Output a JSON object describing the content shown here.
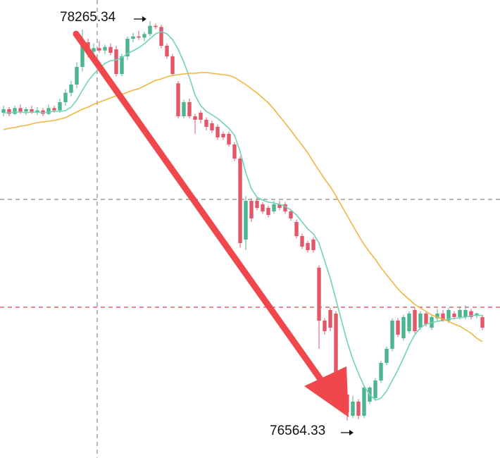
{
  "chart_data": {
    "type": "candlestick",
    "ylim": [
      76405,
      78355
    ],
    "up_color": "#4db58f",
    "down_color": "#e0596a",
    "open": [
      77875,
      77890,
      77870,
      77895,
      77880,
      77890,
      77875,
      77885,
      77870,
      77895,
      77885,
      77920,
      77960,
      77995,
      78070,
      78175,
      78135,
      78150,
      78140,
      78155,
      78145,
      78040,
      78115,
      78190,
      78200,
      78195,
      78210,
      78245,
      78240,
      78160,
      78115,
      78000,
      77860,
      77920,
      77860,
      77875,
      77845,
      77830,
      77815,
      77785,
      77785,
      77740,
      77680,
      77335,
      77500,
      77500,
      77485,
      77470,
      77455,
      77485,
      77485,
      77455,
      77410,
      77350,
      77320,
      77335,
      77215,
      76990,
      77035,
      77020,
      76750,
      76675,
      76585,
      76645,
      76585,
      76645,
      76660,
      76735,
      76810,
      76870,
      76990,
      76915,
      76945,
      77035,
      76960,
      77020,
      76960,
      77000,
      77020,
      76990,
      77020,
      77005,
      77005,
      77030,
      77010,
      77005
    ],
    "high": [
      77905,
      77900,
      77905,
      77910,
      77900,
      77905,
      77900,
      77895,
      77910,
      77905,
      77935,
      77975,
      78010,
      78090,
      78229,
      78190,
      78170,
      78180,
      78165,
      78170,
      78160,
      78125,
      78200,
      78215,
      78225,
      78220,
      78265.34,
      78255,
      78250,
      78170,
      78125,
      78010,
      77930,
      77935,
      77870,
      77885,
      77855,
      77840,
      77825,
      77795,
      77795,
      77750,
      77690,
      77520,
      77510,
      77515,
      77495,
      77480,
      77500,
      77500,
      77495,
      77465,
      77420,
      77360,
      77330,
      77345,
      77225,
      77000,
      77045,
      77030,
      76760,
      76685,
      76670,
      76655,
      76710,
      76710,
      76745,
      76820,
      76880,
      77000,
      77000,
      77015,
      77030,
      77045,
      77030,
      77030,
      77015,
      77040,
      77035,
      77045,
      77030,
      77050,
      77055,
      77040,
      77025,
      77015
    ],
    "low": [
      77860,
      77860,
      77865,
      77870,
      77865,
      77870,
      77865,
      77860,
      77865,
      77875,
      77875,
      77905,
      77945,
      77980,
      78050,
      78110,
      78120,
      78130,
      78125,
      78120,
      78030,
      78030,
      78100,
      78175,
      78185,
      78180,
      78200,
      78230,
      78150,
      78105,
      78030,
      77850,
      77850,
      77850,
      77785,
      77830,
      77800,
      77790,
      77760,
      77760,
      77730,
      77670,
      77300,
      77290,
      77410,
      77460,
      77445,
      77430,
      77445,
      77460,
      77445,
      77415,
      77340,
      77295,
      77280,
      77280,
      76870,
      76930,
      76945,
      76660,
      76660,
      76564.33,
      76575,
      76570,
      76575,
      76635,
      76650,
      76725,
      76800,
      76860,
      76920,
      76905,
      76935,
      76935,
      76950,
      76965,
      76950,
      76990,
      76985,
      76980,
      76995,
      76995,
      76995,
      76995,
      77000,
      76950
    ],
    "close": [
      77890,
      77870,
      77895,
      77880,
      77890,
      77875,
      77885,
      77870,
      77895,
      77885,
      77920,
      77960,
      77995,
      78070,
      78175,
      78135,
      78150,
      78140,
      78155,
      78130,
      78040,
      78115,
      78190,
      78200,
      78195,
      78210,
      78245,
      78240,
      78160,
      78115,
      78040,
      77860,
      77920,
      77860,
      77845,
      77845,
      77815,
      77800,
      77770,
      77770,
      77740,
      77680,
      77320,
      77500,
      77425,
      77470,
      77455,
      77440,
      77485,
      77470,
      77455,
      77425,
      77350,
      77305,
      77290,
      77290,
      76990,
      76945,
      76960,
      76735,
      76675,
      76600,
      76645,
      76585,
      76705,
      76705,
      76735,
      76810,
      76870,
      76990,
      76930,
      77005,
      77020,
      76945,
      77020,
      76975,
      77005,
      77020,
      76990,
      77035,
      77005,
      77035,
      77035,
      77005,
      77020,
      76960
    ],
    "lines": [
      {
        "color": "#6fd3b8",
        "values": [
          77875,
          77875,
          77878,
          77878,
          77875,
          77878,
          77878,
          77875,
          77878,
          77881,
          77881,
          77884,
          77899,
          77929,
          77971,
          78010,
          78040,
          78064,
          78085,
          78097,
          78100,
          78109,
          78127,
          78139,
          78151,
          78169,
          78190,
          78211,
          78220,
          78211,
          78187,
          78145,
          78091,
          78025,
          77950,
          77905,
          77881,
          77866,
          77851,
          77830,
          77809,
          77779,
          77710,
          77620,
          77551,
          77515,
          77503,
          77494,
          77491,
          77485,
          77476,
          77461,
          77440,
          77410,
          77380,
          77359,
          77320,
          77245,
          77170,
          77080,
          76990,
          76900,
          76825,
          76765,
          76711,
          76675,
          76651,
          76660,
          76690,
          76735,
          76780,
          76831,
          76885,
          76930,
          76960,
          76975,
          76981,
          76987,
          76990,
          76996,
          76999,
          77002,
          77005,
          77011,
          77014,
          77011
        ]
      },
      {
        "color": "#f0b63e",
        "values": [
          77803,
          77809,
          77812,
          77818,
          77821,
          77827,
          77833,
          77836,
          77839,
          77842,
          77848,
          77854,
          77866,
          77878,
          77890,
          77899,
          77911,
          77920,
          77929,
          77938,
          77947,
          77953,
          77962,
          77971,
          77977,
          77989,
          78001,
          78013,
          78019,
          78028,
          78034,
          78037,
          78040,
          78043,
          78043,
          78046,
          78046,
          78043,
          78040,
          78037,
          78034,
          78025,
          78010,
          77995,
          77977,
          77959,
          77938,
          77917,
          77890,
          77860,
          77830,
          77800,
          77767,
          77737,
          77704,
          77665,
          77629,
          77593,
          77560,
          77521,
          77479,
          77437,
          77395,
          77353,
          77314,
          77281,
          77251,
          77215,
          77185,
          77155,
          77125,
          77101,
          77080,
          77059,
          77044,
          77029,
          77014,
          77005,
          76996,
          76987,
          76975,
          76966,
          76951,
          76936,
          76915,
          76900
        ]
      }
    ],
    "hlines": [
      {
        "value": 77506,
        "color": "#888888"
      },
      {
        "value": 77047,
        "color": "#d9485a"
      }
    ],
    "annotations": [
      {
        "text": "78265.34"
      },
      {
        "text": "76564.33"
      }
    ]
  }
}
